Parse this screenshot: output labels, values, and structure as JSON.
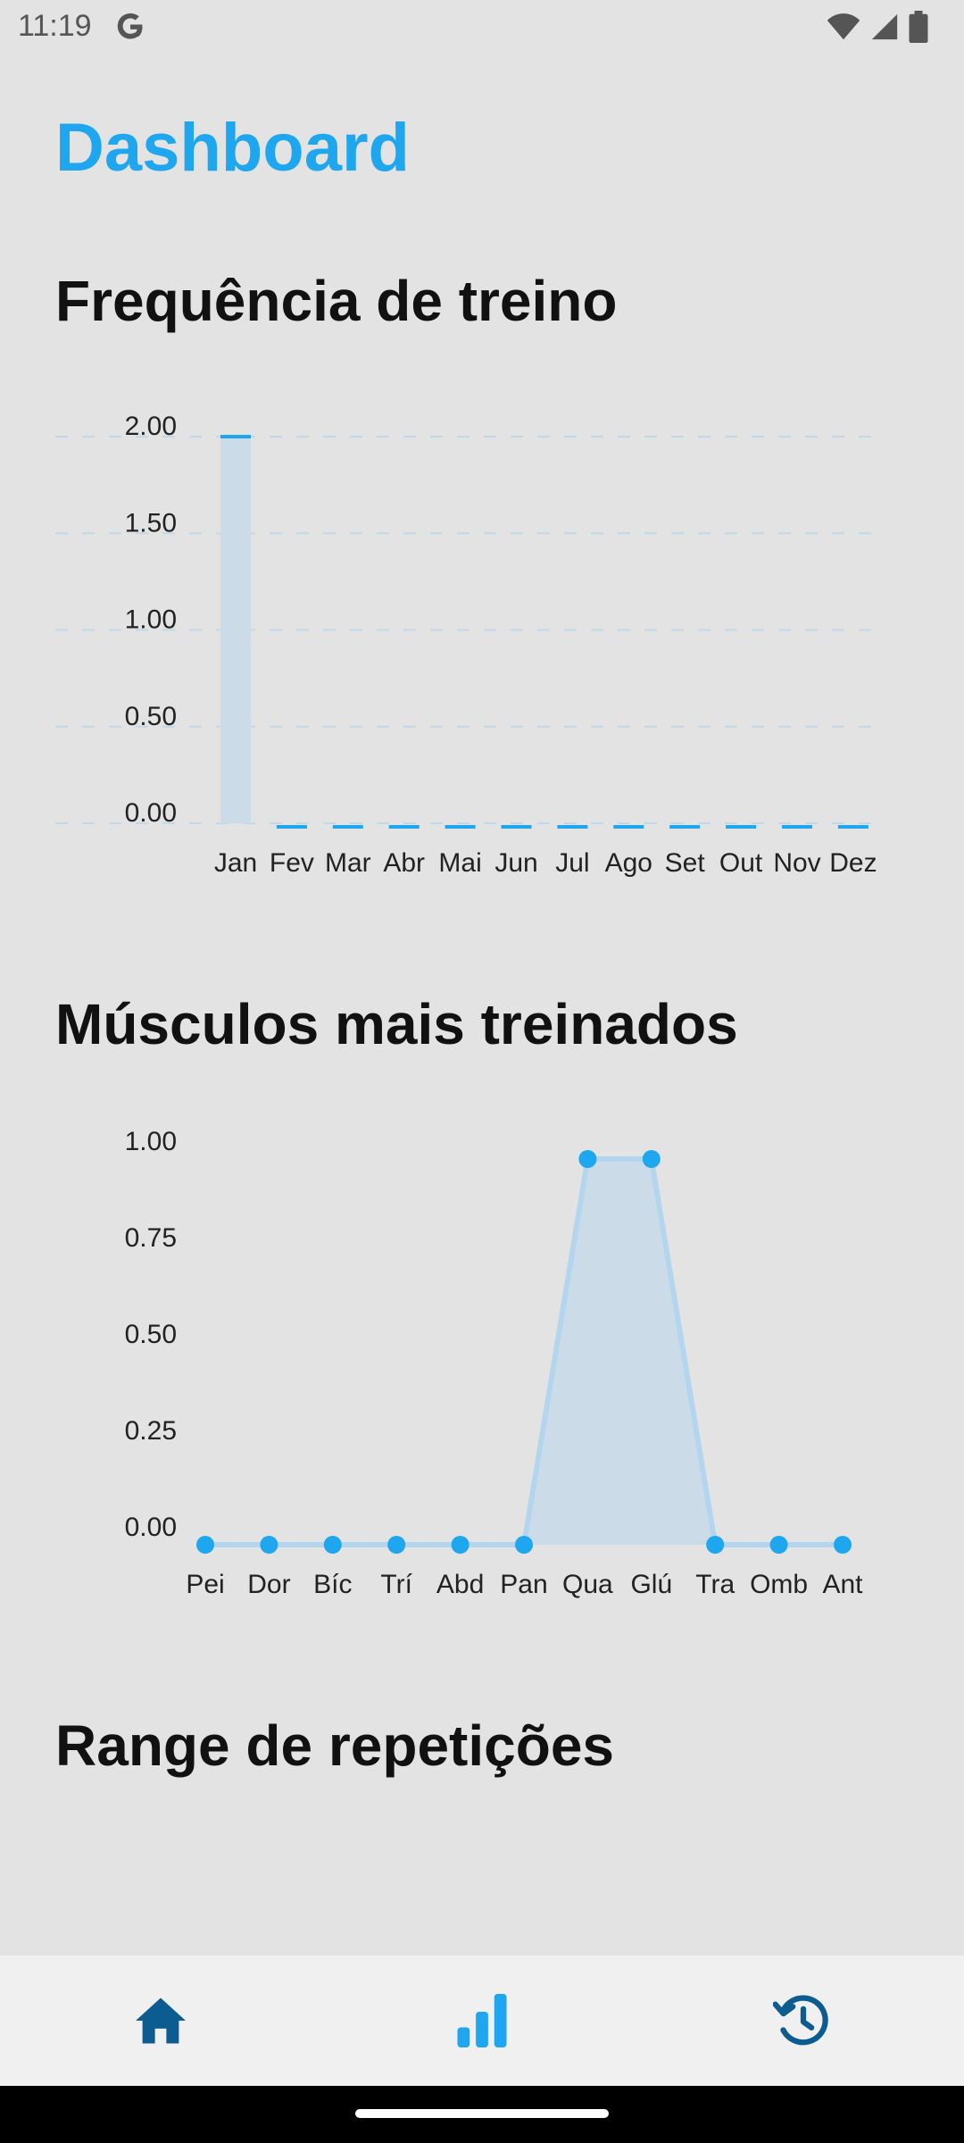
{
  "status_bar": {
    "time": "11:19",
    "g_icon": "google-g-icon",
    "icons": [
      "wifi-icon",
      "signal-icon",
      "battery-icon"
    ]
  },
  "page": {
    "title": "Dashboard"
  },
  "frequency_section": {
    "title": "Frequência de treino"
  },
  "muscles_section": {
    "title": "Músculos mais treinados"
  },
  "reps_section": {
    "title": "Range de repetições"
  },
  "colors": {
    "accent": "#1ea6ee",
    "fill": "#cbdce8",
    "nav_dark": "#0d5c91",
    "nav_active": "#1ea6ee"
  },
  "chart_data": [
    {
      "type": "bar",
      "categories": [
        "Jan",
        "Fev",
        "Mar",
        "Abr",
        "Mai",
        "Jun",
        "Jul",
        "Ago",
        "Set",
        "Out",
        "Nov",
        "Dez"
      ],
      "values": [
        2,
        0,
        0,
        0,
        0,
        0,
        0,
        0,
        0,
        0,
        0,
        0
      ],
      "ylim": [
        0,
        2
      ],
      "yticks": [
        "0.00",
        "0.50",
        "1.00",
        "1.50",
        "2.00"
      ],
      "grid": true
    },
    {
      "type": "area",
      "categories": [
        "Pei",
        "Dor",
        "Bíc",
        "Trí",
        "Abd",
        "Pan",
        "Qua",
        "Glú",
        "Tra",
        "Omb",
        "Ant"
      ],
      "values": [
        0,
        0,
        0,
        0,
        0,
        0,
        1,
        1,
        0,
        0,
        0
      ],
      "ylim": [
        0,
        1
      ],
      "yticks": [
        "0.00",
        "0.25",
        "0.50",
        "0.75",
        "1.00"
      ],
      "grid": false
    }
  ],
  "bottom_nav": {
    "items": [
      {
        "icon": "home-icon",
        "active": false
      },
      {
        "icon": "bar-chart-icon",
        "active": true
      },
      {
        "icon": "history-icon",
        "active": false
      }
    ]
  }
}
